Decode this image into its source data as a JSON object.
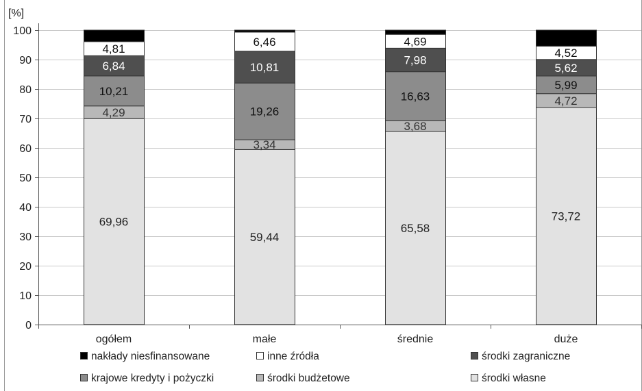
{
  "chart_data": {
    "type": "bar",
    "stacked": true,
    "y_unit_label": "[%]",
    "ylim": [
      0,
      100
    ],
    "yticks": [
      0,
      10,
      20,
      30,
      40,
      50,
      60,
      70,
      80,
      90,
      100
    ],
    "grid": "horizontal",
    "legend_position": "bottom",
    "categories": [
      "ogółem",
      "małe",
      "średnie",
      "duże"
    ],
    "series": [
      {
        "name": "środki własne",
        "color": "#e2e2e2",
        "label_color": "#222222",
        "values": [
          69.96,
          59.44,
          65.58,
          73.72
        ],
        "labels": [
          "69,96",
          "59,44",
          "65,58",
          "73,72"
        ]
      },
      {
        "name": "środki budżetowe",
        "color": "#b8b8b8",
        "label_color": "#333333",
        "values": [
          4.29,
          3.34,
          3.68,
          4.72
        ],
        "labels": [
          "4,29",
          "3,34",
          "3,68",
          "4,72"
        ]
      },
      {
        "name": "krajowe kredyty i pożyczki",
        "color": "#8c8c8c",
        "label_color": "#111111",
        "values": [
          10.21,
          19.26,
          16.63,
          5.99
        ],
        "labels": [
          "10,21",
          "19,26",
          "16,63",
          "5,99"
        ]
      },
      {
        "name": "środki zagraniczne",
        "color": "#4f4f4f",
        "label_color": "#ffffff",
        "values": [
          6.84,
          10.81,
          7.98,
          5.62
        ],
        "labels": [
          "6,84",
          "10,81",
          "7,98",
          "5,62"
        ]
      },
      {
        "name": "inne źródła",
        "color": "#ffffff",
        "label_color": "#111111",
        "values": [
          4.81,
          6.46,
          4.69,
          4.52
        ],
        "labels": [
          "4,81",
          "6,46",
          "4,69",
          "4,52"
        ]
      },
      {
        "name": "nakłady niesfinansowane",
        "color": "#000000",
        "label_color": "#ffffff",
        "values": [
          3.89,
          0.69,
          1.44,
          5.43
        ],
        "labels": [
          "",
          "",
          "",
          ""
        ]
      }
    ],
    "legend_order": [
      "nakłady niesfinansowane",
      "inne źródła",
      "środki zagraniczne",
      "krajowe kredyty i pożyczki",
      "środki budżetowe",
      "środki własne"
    ]
  }
}
